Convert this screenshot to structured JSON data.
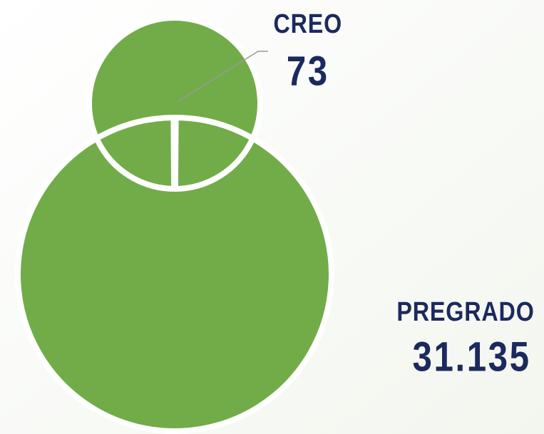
{
  "chart_data": {
    "type": "donut",
    "categories": [
      "CREO",
      "PREGRADO"
    ],
    "values": [
      73,
      31135
    ],
    "value_labels": [
      "73",
      "31.135"
    ],
    "colors": [
      "#5b9bd5",
      "#72ac48"
    ]
  }
}
